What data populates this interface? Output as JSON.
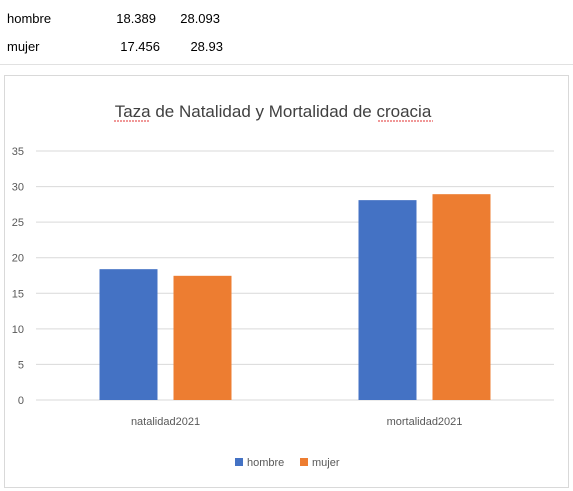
{
  "sheet": {
    "rows": [
      {
        "label": "hombre",
        "v1": "18.389",
        "v2": "28.093"
      },
      {
        "label": "mujer",
        "v1": "17.456",
        "v2": "28.93"
      }
    ]
  },
  "chart_data": {
    "type": "bar",
    "title": "Taza de Natalidad y Mortalidad de croacia",
    "categories": [
      "natalidad2021",
      "mortalidad2021"
    ],
    "series": [
      {
        "name": "hombre",
        "values": [
          18.389,
          28.093
        ],
        "color": "#4472c4"
      },
      {
        "name": "mujer",
        "values": [
          17.456,
          28.93
        ],
        "color": "#ed7d31"
      }
    ],
    "ylim": [
      0,
      35
    ],
    "yticks": [
      0,
      5,
      10,
      15,
      20,
      25,
      30,
      35
    ],
    "grid": true,
    "legend": "bottom"
  }
}
